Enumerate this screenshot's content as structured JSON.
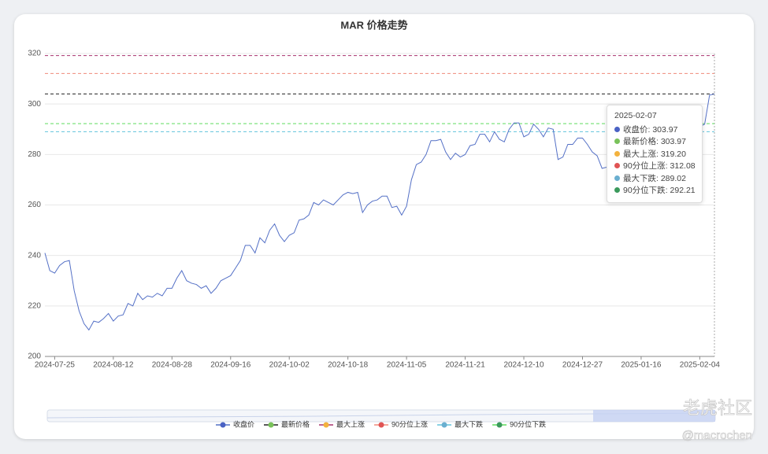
{
  "chart_data": {
    "type": "line",
    "title": "MAR 价格走势",
    "categories": [
      null,
      null,
      "2024-07-25",
      null,
      null,
      null,
      null,
      null,
      null,
      null,
      null,
      null,
      null,
      null,
      "2024-08-12",
      null,
      null,
      null,
      null,
      null,
      null,
      null,
      null,
      null,
      null,
      null,
      "2024-08-28",
      null,
      null,
      null,
      null,
      null,
      null,
      null,
      null,
      null,
      null,
      null,
      "2024-09-16",
      null,
      null,
      null,
      null,
      null,
      null,
      null,
      null,
      null,
      null,
      null,
      "2024-10-02",
      null,
      null,
      null,
      null,
      null,
      null,
      null,
      null,
      null,
      null,
      null,
      "2024-10-18",
      null,
      null,
      null,
      null,
      null,
      null,
      null,
      null,
      null,
      null,
      null,
      "2024-11-05",
      null,
      null,
      null,
      null,
      null,
      null,
      null,
      null,
      null,
      null,
      null,
      "2024-11-21",
      null,
      null,
      null,
      null,
      null,
      null,
      null,
      null,
      null,
      null,
      null,
      "2024-12-10",
      null,
      null,
      null,
      null,
      null,
      null,
      null,
      null,
      null,
      null,
      null,
      "2024-12-27",
      null,
      null,
      null,
      null,
      null,
      null,
      null,
      null,
      null,
      null,
      null,
      "2025-01-16",
      null,
      null,
      null,
      null,
      null,
      null,
      null,
      null,
      null,
      null,
      null,
      "2025-02-04",
      null,
      null,
      null
    ],
    "series": [
      {
        "name": "收盘价",
        "color": "#4a62c4",
        "line_color": "#5470c6",
        "values": [
          241,
          234,
          233,
          236,
          237.5,
          238,
          226,
          218,
          213,
          210.5,
          214,
          213.5,
          215,
          217,
          214,
          216,
          216.5,
          221,
          220,
          225,
          222.5,
          224,
          223.5,
          225,
          224,
          227,
          227,
          231,
          234,
          230,
          229,
          228.5,
          227,
          228,
          225,
          227,
          230,
          231,
          232,
          235,
          238,
          244,
          244,
          241,
          247,
          245,
          250,
          252.5,
          248,
          245.5,
          248,
          249,
          254,
          254.5,
          256,
          261,
          260,
          262,
          261,
          260,
          262,
          264,
          265,
          264.5,
          265,
          257,
          260,
          261.5,
          262,
          263.5,
          263.5,
          259,
          259.5,
          256,
          259.5,
          270,
          276,
          277,
          280,
          285.5,
          285.5,
          286,
          281,
          278,
          280.5,
          279,
          280,
          283.5,
          284,
          288,
          288,
          285,
          289,
          286,
          285,
          290,
          292.5,
          292.5,
          287,
          288,
          292,
          290,
          287,
          290.5,
          290,
          278,
          279,
          284,
          284,
          286.5,
          286.5,
          284,
          281,
          279.5,
          274.5,
          275,
          272.5,
          273,
          275,
          276,
          278,
          277,
          279,
          281,
          280,
          282,
          284,
          283,
          285,
          284,
          286,
          288,
          289,
          290,
          291,
          292,
          303.5,
          303.97
        ]
      }
    ],
    "reference_lines": [
      {
        "name": "最新价格",
        "color": "#79c25a",
        "line_color": "#222222",
        "value": 303.97
      },
      {
        "name": "最大上涨",
        "color": "#f3b23e",
        "line_color": "#a8326e",
        "value": 319.2,
        "value_label": "319.20"
      },
      {
        "name": "90分位上涨",
        "color": "#e05454",
        "line_color": "#f08a7a",
        "value": 312.08
      },
      {
        "name": "最大下跌",
        "color": "#6aafd0",
        "line_color": "#62c4dc",
        "value": 289.02
      },
      {
        "name": "90分位下跌",
        "color": "#3b9a5c",
        "line_color": "#5ddc5d",
        "value": 292.21
      }
    ],
    "ylim": [
      200,
      320
    ],
    "yticks": [
      200,
      220,
      240,
      260,
      280,
      300,
      320
    ],
    "grid": true,
    "tooltip": {
      "title": "2025-02-07"
    },
    "watermark": [
      "老虎社区",
      "@macrochen"
    ]
  }
}
